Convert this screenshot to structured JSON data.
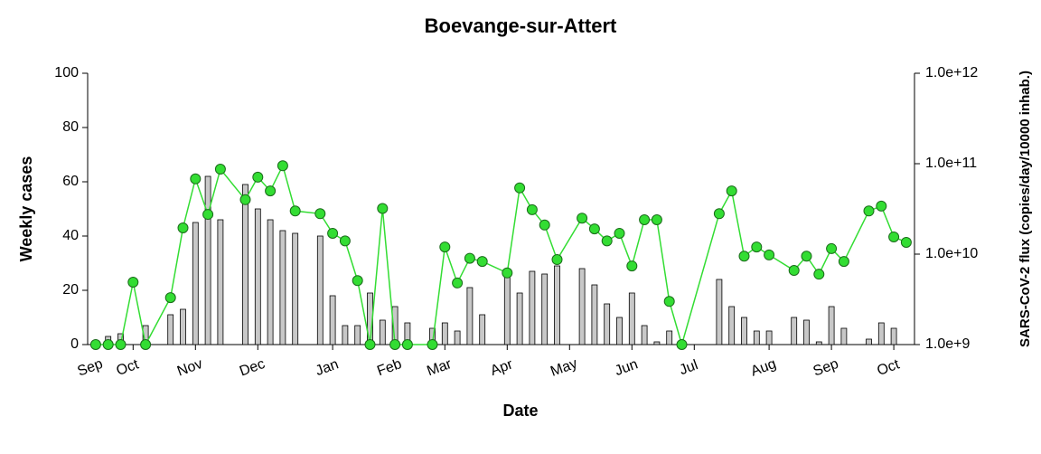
{
  "chart_data": {
    "type": "bar",
    "title": "Boevange-sur-Attert",
    "x_label": "Date",
    "y_label": "Weekly cases",
    "y2_label": "SARS-CoV-2 flux (copies/day/10000 inhab.)",
    "categories": [
      "Sep",
      null,
      null,
      "Oct",
      null,
      null,
      null,
      null,
      "Nov",
      null,
      null,
      null,
      null,
      "Dec",
      null,
      null,
      null,
      null,
      null,
      "Jan",
      null,
      null,
      null,
      null,
      "Feb",
      null,
      null,
      null,
      "Mar",
      null,
      null,
      null,
      null,
      "Apr",
      null,
      null,
      null,
      null,
      "May",
      null,
      null,
      null,
      null,
      "Jun",
      null,
      null,
      null,
      null,
      "Jul",
      null,
      null,
      null,
      null,
      null,
      "Aug",
      null,
      null,
      null,
      null,
      "Sep",
      null,
      null,
      null,
      null,
      "Oct",
      null
    ],
    "ylim": [
      0,
      100
    ],
    "yticks": [
      0,
      20,
      40,
      60,
      80,
      100
    ],
    "y2lim": [
      1000000000,
      1000000000000
    ],
    "y2scale": "log",
    "y2ticks": [
      {
        "value": 1000000000,
        "label": "1.0e+9"
      },
      {
        "value": 10000000000,
        "label": "1.0e+10"
      },
      {
        "value": 100000000000,
        "label": "1.0e+11"
      },
      {
        "value": 1000000000000,
        "label": "1.0e+12"
      }
    ],
    "grid": false,
    "series": [
      {
        "type": "bar",
        "color": "#c8c8c8",
        "values": [
          null,
          3,
          4,
          null,
          7,
          null,
          11,
          13,
          45,
          62,
          46,
          null,
          59,
          50,
          46,
          42,
          41,
          null,
          40,
          18,
          7,
          7,
          19,
          9,
          14,
          8,
          null,
          6,
          8,
          5,
          21,
          11,
          null,
          26,
          19,
          27,
          26,
          29,
          null,
          28,
          22,
          15,
          10,
          19,
          7,
          1,
          5,
          null,
          null,
          null,
          24,
          14,
          10,
          5,
          5,
          null,
          10,
          9,
          1,
          14,
          6,
          null,
          2,
          8,
          6,
          null
        ]
      },
      {
        "type": "line",
        "axis": "y2",
        "color": "#33dd33",
        "values": [
          1000000000,
          1000000000,
          1000000000,
          4900000000,
          1000000000,
          null,
          3300000000,
          19500000000,
          68000000000,
          27500000000,
          87000000000,
          null,
          40000000000,
          71000000000,
          50000000000,
          95000000000,
          30000000000,
          null,
          28000000000,
          17000000000,
          14000000000,
          5100000000,
          1000000000,
          32000000000,
          1000000000,
          1000000000,
          null,
          1000000000,
          12000000000,
          4800000000,
          9000000000,
          8300000000,
          null,
          6200000000,
          54000000000,
          31000000000,
          21000000000,
          8700000000,
          null,
          25000000000,
          19000000000,
          14000000000,
          17000000000,
          7400000000,
          24000000000,
          24000000000,
          3000000000,
          1000000000,
          null,
          null,
          28000000000,
          50000000000,
          9500000000,
          12000000000,
          9800000000,
          null,
          6600000000,
          9500000000,
          6000000000,
          11500000000,
          8300000000,
          null,
          30000000000,
          34000000000,
          15500000000,
          13500000000
        ]
      }
    ]
  }
}
